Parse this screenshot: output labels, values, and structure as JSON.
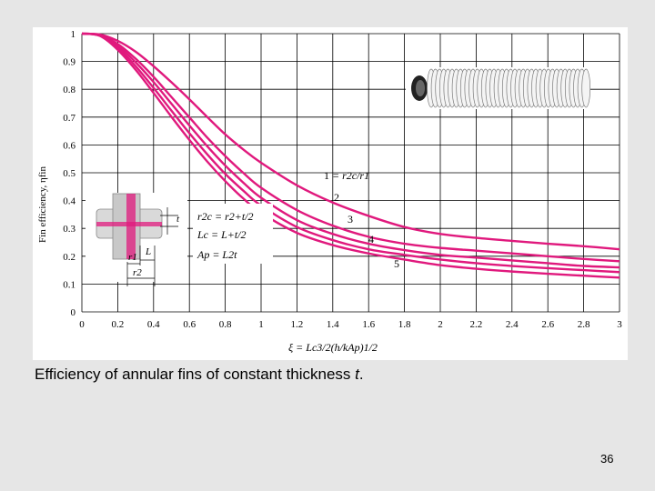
{
  "colors": {
    "curve": "#e0197d",
    "grid": "#000000",
    "background": "#e6e6e6"
  },
  "caption": {
    "text": "Efficiency of annular fins of constant thickness ",
    "italic_symbol": "t",
    "end": "."
  },
  "page_number": "36",
  "inset_labels": {
    "t": "t",
    "r1": "r1",
    "L": "L",
    "r2": "r2"
  },
  "chart_data": {
    "type": "line",
    "ylabel": "Fin efficiency, ηfin",
    "xlabel": "ξ = Lc3/2(h/kAp)1/2",
    "xlim": [
      0,
      3
    ],
    "ylim": [
      0,
      1
    ],
    "grid": true,
    "xticks": [
      "0",
      "0.2",
      "0.4",
      "0.6",
      "0.8",
      "1",
      "1.2",
      "1.4",
      "1.6",
      "1.8",
      "2",
      "2.2",
      "2.4",
      "2.6",
      "2.8",
      "3"
    ],
    "yticks": [
      "0",
      "0.1",
      "0.2",
      "0.3",
      "0.4",
      "0.5",
      "0.6",
      "0.7",
      "0.8",
      "0.9",
      "1"
    ],
    "x": [
      0,
      0.1,
      0.2,
      0.3,
      0.4,
      0.5,
      0.6,
      0.7,
      0.8,
      0.9,
      1.0,
      1.2,
      1.4,
      1.6,
      1.8,
      2.0,
      2.2,
      2.4,
      2.6,
      2.8,
      3.0
    ],
    "series": [
      {
        "label": "1",
        "values": [
          1.0,
          0.997,
          0.974,
          0.935,
          0.883,
          0.825,
          0.764,
          0.7,
          0.638,
          0.584,
          0.536,
          0.455,
          0.393,
          0.345,
          0.305,
          0.28,
          0.266,
          0.255,
          0.245,
          0.236,
          0.225
        ]
      },
      {
        "label": "2",
        "values": [
          1.0,
          0.995,
          0.963,
          0.91,
          0.845,
          0.772,
          0.699,
          0.626,
          0.56,
          0.5,
          0.446,
          0.366,
          0.31,
          0.27,
          0.245,
          0.23,
          0.22,
          0.21,
          0.2,
          0.19,
          0.182
        ]
      },
      {
        "label": "3",
        "values": [
          1.0,
          0.994,
          0.957,
          0.897,
          0.826,
          0.748,
          0.67,
          0.595,
          0.526,
          0.465,
          0.41,
          0.33,
          0.28,
          0.245,
          0.222,
          0.205,
          0.195,
          0.185,
          0.175,
          0.165,
          0.16
        ]
      },
      {
        "label": "4",
        "values": [
          1.0,
          0.993,
          0.95,
          0.883,
          0.805,
          0.723,
          0.642,
          0.566,
          0.496,
          0.436,
          0.382,
          0.305,
          0.258,
          0.225,
          0.205,
          0.188,
          0.175,
          0.165,
          0.157,
          0.15,
          0.143
        ]
      },
      {
        "label": "5",
        "values": [
          1.0,
          0.992,
          0.942,
          0.87,
          0.787,
          0.701,
          0.618,
          0.54,
          0.47,
          0.408,
          0.356,
          0.284,
          0.24,
          0.21,
          0.188,
          0.168,
          0.155,
          0.145,
          0.137,
          0.13,
          0.123
        ]
      }
    ],
    "annotations": {
      "curve1": "= r2c/r1",
      "formula1": "r2c = r2+t/2",
      "formula2": "Lc = L+t/2",
      "formula3": "Ap = L2t"
    }
  }
}
